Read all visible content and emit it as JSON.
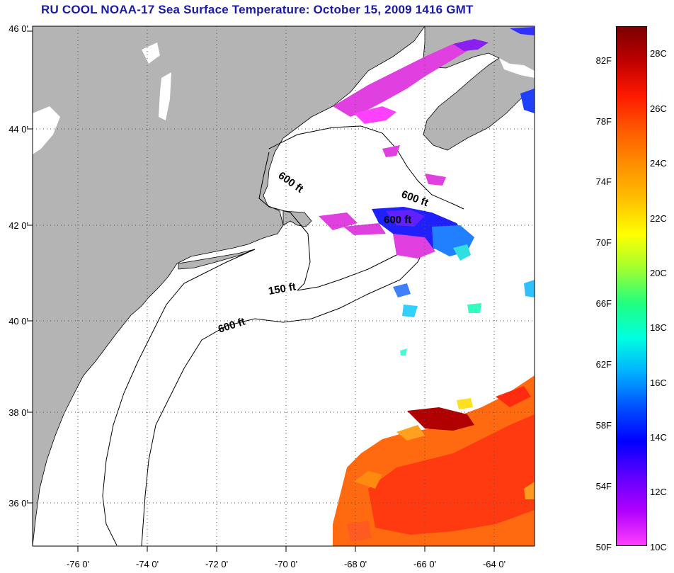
{
  "title": "RU COOL  NOAA-17  Sea Surface Temperature:  October 15, 2009 1416 GMT",
  "map": {
    "latitude_labels": [
      "46 0'",
      "44 0'",
      "42 0'",
      "40 0'",
      "38 0'",
      "36 0'"
    ],
    "longitude_labels": [
      "-76 0'",
      "-74 0'",
      "-72 0'",
      "-70 0'",
      "-68 0'",
      "-66 0'",
      "-64 0'"
    ],
    "contour_labels": [
      "600 ft",
      "600 ft",
      "600 ft",
      "150 ft",
      "600 ft"
    ],
    "land_color": "#b4b4b4",
    "water_color": "#ffffff"
  },
  "colorbar": {
    "fahrenheit_labels": [
      "82F",
      "78F",
      "74F",
      "70F",
      "66F",
      "62F",
      "58F",
      "54F",
      "50F"
    ],
    "celsius_labels": [
      "28C",
      "26C",
      "24C",
      "22C",
      "20C",
      "18C",
      "16C",
      "14C",
      "12C",
      "10C"
    ],
    "gradient_colors_top_to_bottom": [
      "#7a0000",
      "#c00000",
      "#ff1a00",
      "#ff5a00",
      "#ff9000",
      "#ffc000",
      "#ffff00",
      "#a0ff30",
      "#20ff80",
      "#00ffe0",
      "#00b0ff",
      "#0050ff",
      "#0000ff",
      "#6000ff",
      "#b000ff",
      "#ff40ff"
    ]
  }
}
